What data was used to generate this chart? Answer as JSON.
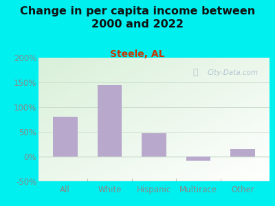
{
  "categories": [
    "All",
    "White",
    "Hispanic",
    "Multirace",
    "Other"
  ],
  "values": [
    80,
    145,
    47,
    -8,
    15
  ],
  "bar_color": "#b8a8cc",
  "title": "Change in per capita income between\n2000 and 2022",
  "subtitle": "Steele, AL",
  "bg_color": "#00efef",
  "plot_bg_topleft": "#d8f0d8",
  "plot_bg_bottomright": "#f8fff8",
  "ylim": [
    -50,
    200
  ],
  "yticks": [
    -50,
    0,
    50,
    100,
    150,
    200
  ],
  "title_fontsize": 11.5,
  "subtitle_fontsize": 10,
  "subtitle_color": "#cc3300",
  "tick_color": "#888888",
  "xtick_color": "#888888",
  "watermark": "City-Data.com",
  "grid_color": "#ccddcc",
  "bottom_line_color": "#aabbaa"
}
